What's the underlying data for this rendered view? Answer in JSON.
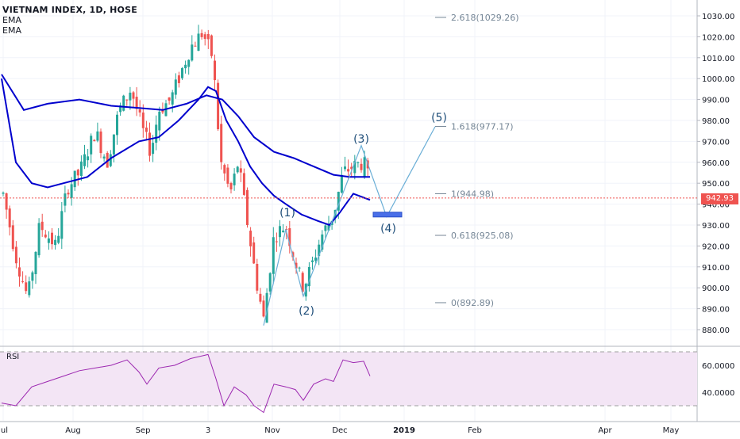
{
  "header": {
    "symbol_line": "VIETNAM INDEX, 1D, HOSE",
    "indicators": [
      "EMA",
      "EMA"
    ]
  },
  "chart_data": [
    {
      "type": "candlestick",
      "x_tick_labels": [
        "Jul",
        "Aug",
        "Sep",
        "3",
        "Nov",
        "Dec",
        "2019",
        "Feb",
        "Apr",
        "May"
      ],
      "y_tick_labels": [
        "1030.00",
        "1020.00",
        "1010.00",
        "1000.00",
        "990.00",
        "980.00",
        "970.00",
        "960.00",
        "950.00",
        "940.00",
        "930.00",
        "920.00",
        "910.00",
        "900.00",
        "890.00",
        "880.00"
      ],
      "ylim": [
        870,
        1034
      ],
      "last_price": "942.93",
      "series": [
        {
          "name": "EMA",
          "color": "#0000cd"
        },
        {
          "name": "EMA",
          "color": "#0000cd"
        }
      ],
      "fib_levels": [
        {
          "label": "2.618(1029.26)",
          "value": 1029.26
        },
        {
          "label": "1.618(977.17)",
          "value": 977.17
        },
        {
          "label": "1(944.98)",
          "value": 944.98
        },
        {
          "label": "0.618(925.08)",
          "value": 925.08
        },
        {
          "label": "0(892.89)",
          "value": 892.89
        }
      ],
      "wave_labels": [
        "(1)",
        "(2)",
        "(3)",
        "(4)",
        "(5)"
      ]
    },
    {
      "type": "line",
      "title": "RSI",
      "y_tick_labels": [
        "60.0000",
        "40.0000"
      ],
      "ylim": [
        20,
        80
      ],
      "bands": [
        70,
        30
      ],
      "color": "#9c27b0"
    }
  ],
  "colors": {
    "up": "#26a69a",
    "down": "#ef5350",
    "ema": "#0000cd",
    "fib": "#758696",
    "rsi": "#9c27b0",
    "rsi_band": "#f3e5f5",
    "target_box": "#4a6fe8"
  }
}
